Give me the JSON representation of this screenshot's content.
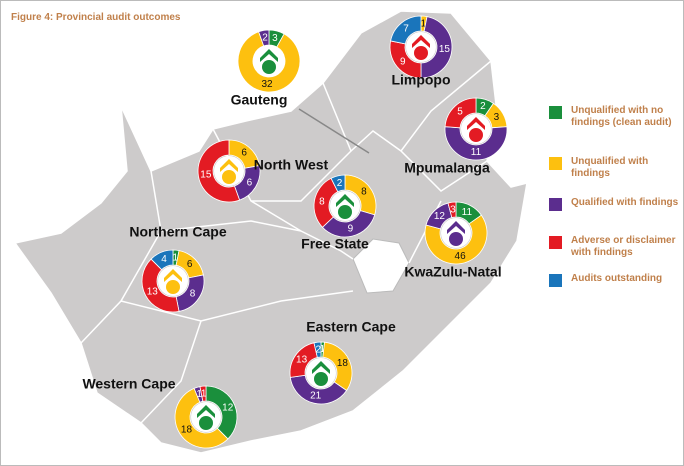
{
  "title": "Figure 4: Provincial audit outcomes",
  "legend": [
    {
      "label": "Unqualified with no findings (clean audit)",
      "color": "#1a8f3c"
    },
    {
      "label": "Unqualified with findings",
      "color": "#fdc00f"
    },
    {
      "label": "Qualified with findings",
      "color": "#5b2d8e"
    },
    {
      "label": "Adverse or disclaimer with findings",
      "color": "#e31b23"
    },
    {
      "label": "Audits outstanding",
      "color": "#1a75bb"
    }
  ],
  "provinces": [
    {
      "name": "Gauteng",
      "values": [
        3,
        32,
        2,
        null,
        null
      ],
      "icon_color": "#1a8f3c"
    },
    {
      "name": "Limpopo",
      "values": [
        null,
        1,
        15,
        9,
        7
      ],
      "icon_color": "#e31b23"
    },
    {
      "name": "Mpumalanga",
      "values": [
        2,
        3,
        11,
        5,
        null
      ],
      "icon_color": "#e31b23"
    },
    {
      "name": "North West",
      "values": [
        null,
        6,
        6,
        15,
        null
      ],
      "icon_color": "#fdc00f"
    },
    {
      "name": "Free State",
      "values": [
        null,
        8,
        9,
        8,
        2
      ],
      "icon_color": "#1a8f3c"
    },
    {
      "name": "KwaZulu-Natal",
      "values": [
        11,
        46,
        12,
        3,
        null
      ],
      "icon_color": "#5b2d8e"
    },
    {
      "name": "Northern Cape",
      "values": [
        1,
        6,
        8,
        13,
        4
      ],
      "icon_color": "#fdc00f"
    },
    {
      "name": "Eastern Cape",
      "values": [
        1,
        18,
        21,
        13,
        2
      ],
      "icon_color": "#1a8f3c"
    },
    {
      "name": "Western Cape",
      "values": [
        12,
        18,
        1,
        1,
        null
      ],
      "icon_color": "#1a8f3c"
    }
  ]
}
